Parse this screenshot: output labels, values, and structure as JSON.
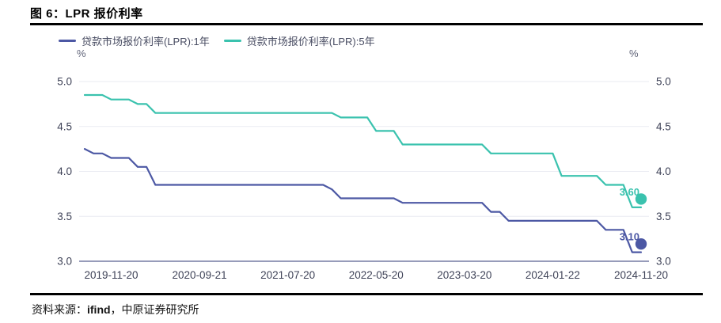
{
  "page": {
    "title": "图 6：LPR 报价利率",
    "source_prefix": "资料来源：",
    "source_brand": "ifind",
    "source_suffix": "，中原证券研究所"
  },
  "colors": {
    "lpr_1y": "#4c58a4",
    "lpr_5y": "#3ac2ae",
    "grid": "#eaebf2",
    "axis": "#757ba3",
    "tick_text": "#3e4257"
  },
  "chart_data": {
    "type": "line",
    "title": "LPR 报价利率",
    "unit": "%",
    "ylim": [
      3.0,
      5.0
    ],
    "y_ticks": [
      5.0,
      4.5,
      4.0,
      3.5,
      3.0
    ],
    "grid": true,
    "legend_position": "top",
    "x": [
      "2019-08",
      "2019-09",
      "2019-10",
      "2019-11",
      "2019-12",
      "2020-01",
      "2020-02",
      "2020-03",
      "2020-04",
      "2020-05",
      "2020-06",
      "2020-07",
      "2020-08",
      "2020-09",
      "2020-10",
      "2020-11",
      "2020-12",
      "2021-01",
      "2021-02",
      "2021-03",
      "2021-04",
      "2021-05",
      "2021-06",
      "2021-07",
      "2021-08",
      "2021-09",
      "2021-10",
      "2021-11",
      "2021-12",
      "2022-01",
      "2022-02",
      "2022-03",
      "2022-04",
      "2022-05",
      "2022-06",
      "2022-07",
      "2022-08",
      "2022-09",
      "2022-10",
      "2022-11",
      "2022-12",
      "2023-01",
      "2023-02",
      "2023-03",
      "2023-04",
      "2023-05",
      "2023-06",
      "2023-07",
      "2023-08",
      "2023-09",
      "2023-10",
      "2023-11",
      "2023-12",
      "2024-01",
      "2024-02",
      "2024-03",
      "2024-04",
      "2024-05",
      "2024-06",
      "2024-07",
      "2024-08",
      "2024-09",
      "2024-10",
      "2024-11"
    ],
    "x_ticks": [
      {
        "index": 3,
        "label": "2019-11-20"
      },
      {
        "index": 13,
        "label": "2020-09-21"
      },
      {
        "index": 23,
        "label": "2021-07-20"
      },
      {
        "index": 33,
        "label": "2022-05-20"
      },
      {
        "index": 43,
        "label": "2023-03-20"
      },
      {
        "index": 53,
        "label": "2024-01-22"
      },
      {
        "index": 63,
        "label": "2024-11-20"
      }
    ],
    "series": [
      {
        "name": "贷款市场报价利率(LPR):1年",
        "color": "#4c58a4",
        "values": [
          4.25,
          4.2,
          4.2,
          4.15,
          4.15,
          4.15,
          4.05,
          4.05,
          3.85,
          3.85,
          3.85,
          3.85,
          3.85,
          3.85,
          3.85,
          3.85,
          3.85,
          3.85,
          3.85,
          3.85,
          3.85,
          3.85,
          3.85,
          3.85,
          3.85,
          3.85,
          3.85,
          3.85,
          3.8,
          3.7,
          3.7,
          3.7,
          3.7,
          3.7,
          3.7,
          3.7,
          3.65,
          3.65,
          3.65,
          3.65,
          3.65,
          3.65,
          3.65,
          3.65,
          3.65,
          3.65,
          3.55,
          3.55,
          3.45,
          3.45,
          3.45,
          3.45,
          3.45,
          3.45,
          3.45,
          3.45,
          3.45,
          3.45,
          3.45,
          3.35,
          3.35,
          3.35,
          3.1,
          3.1
        ]
      },
      {
        "name": "贷款市场报价利率(LPR):5年",
        "color": "#3ac2ae",
        "values": [
          4.85,
          4.85,
          4.85,
          4.8,
          4.8,
          4.8,
          4.75,
          4.75,
          4.65,
          4.65,
          4.65,
          4.65,
          4.65,
          4.65,
          4.65,
          4.65,
          4.65,
          4.65,
          4.65,
          4.65,
          4.65,
          4.65,
          4.65,
          4.65,
          4.65,
          4.65,
          4.65,
          4.65,
          4.65,
          4.6,
          4.6,
          4.6,
          4.6,
          4.45,
          4.45,
          4.45,
          4.3,
          4.3,
          4.3,
          4.3,
          4.3,
          4.3,
          4.3,
          4.3,
          4.3,
          4.3,
          4.2,
          4.2,
          4.2,
          4.2,
          4.2,
          4.2,
          4.2,
          4.2,
          3.95,
          3.95,
          3.95,
          3.95,
          3.95,
          3.85,
          3.85,
          3.85,
          3.6,
          3.6
        ]
      }
    ],
    "end_labels": [
      {
        "series": 0,
        "text": "3.10"
      },
      {
        "series": 1,
        "text": "3.60"
      }
    ]
  }
}
